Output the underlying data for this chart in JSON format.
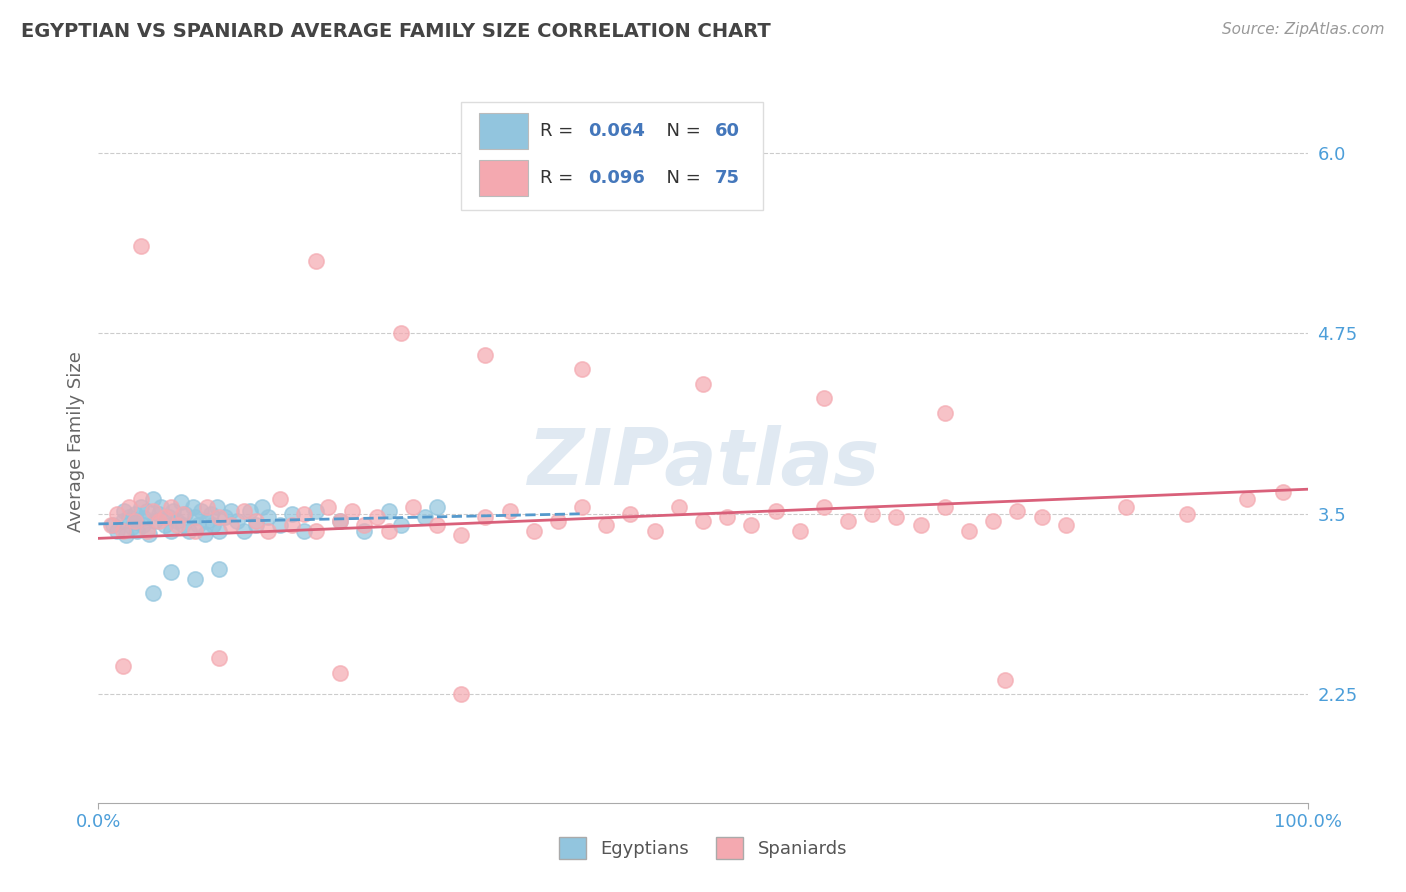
{
  "title": "EGYPTIAN VS SPANIARD AVERAGE FAMILY SIZE CORRELATION CHART",
  "source_text": "Source: ZipAtlas.com",
  "ylabel": "Average Family Size",
  "x_min": 0.0,
  "x_max": 100.0,
  "y_min": 1.5,
  "y_max": 6.5,
  "y_ticks": [
    2.25,
    3.5,
    4.75,
    6.0
  ],
  "x_ticks": [
    0.0,
    100.0
  ],
  "x_tick_labels": [
    "0.0%",
    "100.0%"
  ],
  "egyptian_R": 0.064,
  "egyptian_N": 60,
  "spaniard_R": 0.096,
  "spaniard_N": 75,
  "egyptian_color": "#92c5de",
  "spaniard_color": "#f4a9b0",
  "egyptian_line_color": "#5599cc",
  "spaniard_line_color": "#d9607a",
  "background_color": "#ffffff",
  "grid_color": "#cccccc",
  "title_color": "#444444",
  "axis_label_color": "#4c9ed9",
  "watermark": "ZIPatlas",
  "watermark_color": "#c8d8e8",
  "legend_R_color": "#4477bb",
  "legend_N_color": "#4477bb",
  "egyptian_pts_x": [
    1.2,
    1.5,
    2.0,
    2.1,
    2.3,
    2.5,
    2.8,
    3.0,
    3.1,
    3.2,
    3.5,
    3.7,
    3.8,
    4.0,
    4.2,
    4.5,
    4.7,
    5.0,
    5.2,
    5.5,
    5.8,
    6.0,
    6.2,
    6.5,
    6.8,
    7.0,
    7.2,
    7.5,
    7.8,
    8.0,
    8.2,
    8.5,
    8.8,
    9.0,
    9.3,
    9.5,
    9.8,
    10.0,
    10.5,
    11.0,
    11.5,
    12.0,
    12.5,
    13.0,
    13.5,
    14.0,
    15.0,
    16.0,
    17.0,
    18.0,
    20.0,
    22.0,
    24.0,
    25.0,
    27.0,
    28.0,
    4.5,
    6.0,
    8.0,
    10.0
  ],
  "egyptian_pts_y": [
    3.42,
    3.38,
    3.45,
    3.52,
    3.35,
    3.48,
    3.41,
    3.5,
    3.44,
    3.38,
    3.55,
    3.42,
    3.47,
    3.52,
    3.36,
    3.6,
    3.45,
    3.5,
    3.55,
    3.42,
    3.48,
    3.38,
    3.52,
    3.45,
    3.58,
    3.42,
    3.5,
    3.38,
    3.55,
    3.48,
    3.42,
    3.52,
    3.36,
    3.45,
    3.5,
    3.42,
    3.55,
    3.38,
    3.48,
    3.52,
    3.45,
    3.38,
    3.52,
    3.42,
    3.55,
    3.48,
    3.42,
    3.5,
    3.38,
    3.52,
    3.45,
    3.38,
    3.52,
    3.42,
    3.48,
    3.55,
    2.95,
    3.1,
    3.05,
    3.12
  ],
  "spaniard_pts_x": [
    1.0,
    1.5,
    2.0,
    2.5,
    3.0,
    3.5,
    4.0,
    4.5,
    5.0,
    5.5,
    6.0,
    6.5,
    7.0,
    8.0,
    9.0,
    10.0,
    11.0,
    12.0,
    13.0,
    14.0,
    15.0,
    16.0,
    17.0,
    18.0,
    19.0,
    20.0,
    21.0,
    22.0,
    23.0,
    24.0,
    26.0,
    28.0,
    30.0,
    32.0,
    34.0,
    36.0,
    38.0,
    40.0,
    42.0,
    44.0,
    46.0,
    48.0,
    50.0,
    52.0,
    54.0,
    56.0,
    58.0,
    60.0,
    62.0,
    64.0,
    66.0,
    68.0,
    70.0,
    72.0,
    74.0,
    76.0,
    78.0,
    80.0,
    85.0,
    90.0,
    95.0,
    98.0,
    3.5,
    18.0,
    25.0,
    32.0,
    40.0,
    50.0,
    60.0,
    70.0,
    2.0,
    10.0,
    20.0,
    30.0,
    75.0
  ],
  "spaniard_pts_y": [
    3.42,
    3.5,
    3.38,
    3.55,
    3.45,
    3.6,
    3.38,
    3.52,
    3.45,
    3.48,
    3.55,
    3.42,
    3.5,
    3.38,
    3.55,
    3.48,
    3.42,
    3.52,
    3.45,
    3.38,
    3.6,
    3.42,
    3.5,
    3.38,
    3.55,
    3.45,
    3.52,
    3.42,
    3.48,
    3.38,
    3.55,
    3.42,
    3.35,
    3.48,
    3.52,
    3.38,
    3.45,
    3.55,
    3.42,
    3.5,
    3.38,
    3.55,
    3.45,
    3.48,
    3.42,
    3.52,
    3.38,
    3.55,
    3.45,
    3.5,
    3.48,
    3.42,
    3.55,
    3.38,
    3.45,
    3.52,
    3.48,
    3.42,
    3.55,
    3.5,
    3.6,
    3.65,
    5.35,
    5.25,
    4.75,
    4.6,
    4.5,
    4.4,
    4.3,
    4.2,
    2.45,
    2.5,
    2.4,
    2.25,
    2.35
  ],
  "egyptian_trend_x": [
    0,
    40
  ],
  "egyptian_trend_y": [
    3.43,
    3.5
  ],
  "spaniard_trend_x": [
    0,
    100
  ],
  "spaniard_trend_y": [
    3.33,
    3.67
  ]
}
